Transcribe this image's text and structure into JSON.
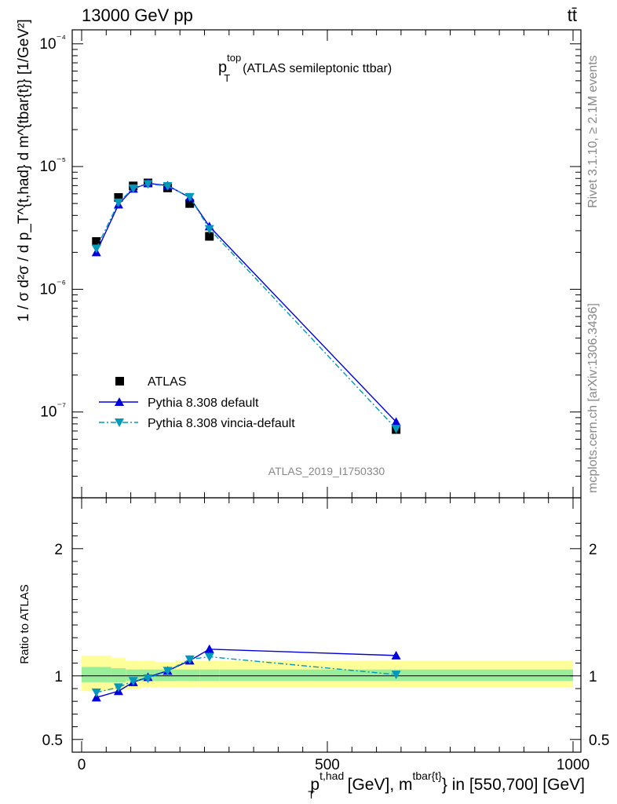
{
  "header": {
    "energy_label": "13000 GeV pp",
    "process_label": "tt̄"
  },
  "side_texts": {
    "rivet": "Rivet 3.1.10, ≥ 2.1M events",
    "mcplots": "mcplots.cern.ch [arXiv:1306.3436]"
  },
  "chart_data": [
    {
      "type": "scatter",
      "panel": "main",
      "title_main": "p",
      "title_sup": "top",
      "title_sub": "T",
      "title_rest": "(ATLAS semileptonic ttbar)",
      "analysis_tag": "ATLAS_2019_I1750330",
      "ylabel": "1 / σ d²σ / d p_T^{t,had} d m^{tbar{t}} [1/GeV²]",
      "yscale": "log",
      "xlim": [
        0,
        1000
      ],
      "ylim": [
        2e-08,
        0.00013
      ],
      "ytick_labels": [
        "10⁻⁷",
        "10⁻⁶",
        "10⁻⁵",
        "10⁻⁴"
      ],
      "legend_placement": "lower-left",
      "series": [
        {
          "name": "ATLAS",
          "color": "#000000",
          "marker": "square",
          "x": [
            30,
            75,
            105,
            135,
            175,
            220,
            260,
            640
          ],
          "y": [
            2.45e-06,
            5.6e-06,
            6.95e-06,
            7.35e-06,
            6.7e-06,
            5e-06,
            2.7e-06,
            7.2e-08
          ]
        },
        {
          "name": "Pythia 8.308 default",
          "color": "#0000dd",
          "marker": "triangle-up",
          "x": [
            30,
            75,
            105,
            135,
            175,
            220,
            260,
            640
          ],
          "y": [
            2e-06,
            4.9e-06,
            6.6e-06,
            7.3e-06,
            7e-06,
            5.6e-06,
            3.25e-06,
            8.3e-08
          ]
        },
        {
          "name": "Pythia 8.308 vincia-default",
          "color": "#0099bb",
          "marker": "triangle-down",
          "x": [
            30,
            75,
            105,
            135,
            175,
            220,
            260,
            640
          ],
          "y": [
            2.15e-06,
            5.1e-06,
            6.65e-06,
            7.2e-06,
            6.95e-06,
            5.65e-06,
            3.1e-06,
            7.3e-08
          ]
        }
      ]
    },
    {
      "type": "line",
      "panel": "ratio",
      "ylabel": "Ratio to ATLAS",
      "xlabel_main": "p",
      "xlabel_sup": "t,had",
      "xlabel_sub": "T",
      "xlabel_mid": " [GeV], m",
      "xlabel_sup2": "tbar{t}",
      "xlabel_rest": "} in [550,700] [GeV]",
      "xlim": [
        0,
        1000
      ],
      "ylim": [
        0.4,
        2.4
      ],
      "x_ticks": [
        0,
        500,
        1000
      ],
      "y_ticks": [
        0.5,
        1,
        2
      ],
      "bands": {
        "edges": [
          0,
          60,
          90,
          120,
          150,
          190,
          240,
          280,
          1000
        ],
        "yellow": [
          [
            0.88,
            1.16
          ],
          [
            0.89,
            1.14
          ],
          [
            0.9,
            1.12
          ],
          [
            0.91,
            1.12
          ],
          [
            0.91,
            1.11
          ],
          [
            0.91,
            1.12
          ],
          [
            0.91,
            1.12
          ],
          [
            0.91,
            1.12
          ]
        ],
        "green": [
          [
            0.95,
            1.07
          ],
          [
            0.95,
            1.06
          ],
          [
            0.96,
            1.05
          ],
          [
            0.96,
            1.05
          ],
          [
            0.96,
            1.05
          ],
          [
            0.96,
            1.05
          ],
          [
            0.96,
            1.05
          ],
          [
            0.96,
            1.05
          ]
        ],
        "yellow_color": "#ffff99",
        "green_color": "#99ee99"
      },
      "series": [
        {
          "name": "Pythia 8.308 default",
          "color": "#0000dd",
          "marker": "triangle-up",
          "x": [
            30,
            75,
            105,
            135,
            175,
            220,
            260,
            640
          ],
          "y": [
            0.83,
            0.88,
            0.95,
            0.99,
            1.04,
            1.12,
            1.21,
            1.16
          ]
        },
        {
          "name": "Pythia 8.308 vincia-default",
          "color": "#0099bb",
          "marker": "triangle-down",
          "x": [
            30,
            75,
            105,
            135,
            175,
            220,
            260,
            640
          ],
          "y": [
            0.87,
            0.91,
            0.96,
            0.98,
            1.04,
            1.13,
            1.15,
            1.01
          ]
        }
      ]
    }
  ]
}
